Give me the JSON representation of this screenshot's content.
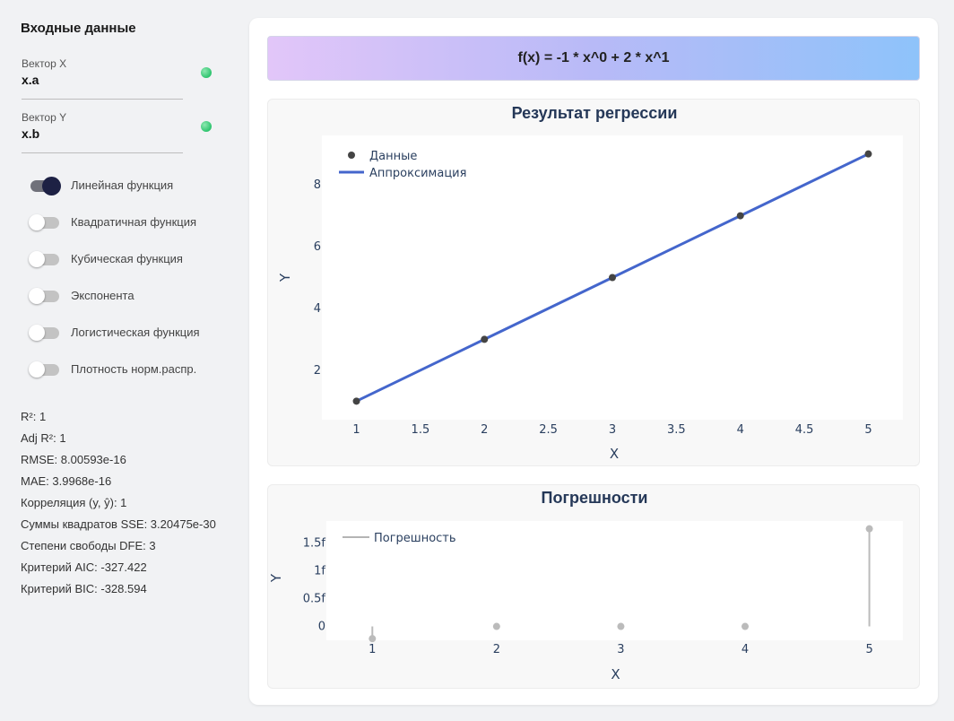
{
  "sidebar": {
    "title": "Входные данные",
    "fields": [
      {
        "label": "Вектор X",
        "value": "x.a"
      },
      {
        "label": "Вектор Y",
        "value": "x.b"
      }
    ],
    "toggles": [
      {
        "label": "Линейная функция",
        "on": true
      },
      {
        "label": "Квадратичная функция",
        "on": false
      },
      {
        "label": "Кубическая функция",
        "on": false
      },
      {
        "label": "Экспонента",
        "on": false
      },
      {
        "label": "Логистическая функция",
        "on": false
      },
      {
        "label": "Плотность норм.распр.",
        "on": false
      }
    ],
    "stats": [
      "R²: 1",
      "Adj R²: 1",
      "RMSE: 8.00593e-16",
      "MAE: 3.9968e-16",
      "Корреляция (y, ŷ): 1",
      "Суммы квадратов SSE: 3.20475e-30",
      "Степени свободы DFE: 3",
      "Критерий AIC: -327.422",
      "Критерий BIC: -328.594"
    ]
  },
  "main": {
    "formula": "f(x) = -1 * x^0 + 2 * x^1"
  },
  "colors": {
    "fit_line": "#4466cc",
    "data_marker": "#444444",
    "error_marker": "#bbbbbb",
    "status_ok": "#2ec46e",
    "toggle_on": "#1d2144"
  },
  "chart_data": [
    {
      "type": "line",
      "title": "Результат регрессии",
      "xlabel": "X",
      "ylabel": "Y",
      "x_ticks": [
        "1",
        "1.5",
        "2",
        "2.5",
        "3",
        "3.5",
        "4",
        "4.5",
        "5"
      ],
      "y_ticks": [
        "2",
        "4",
        "6",
        "8"
      ],
      "xlim": [
        0.73,
        5.27
      ],
      "ylim": [
        0.4,
        9.6
      ],
      "legend_position": "top-left",
      "series": [
        {
          "name": "Данные",
          "kind": "markers",
          "x": [
            1,
            2,
            3,
            4,
            5
          ],
          "y": [
            1,
            3,
            5,
            7,
            9
          ]
        },
        {
          "name": "Аппроксимация",
          "kind": "line",
          "x": [
            1,
            2,
            3,
            4,
            5
          ],
          "y": [
            1,
            3,
            5,
            7,
            9
          ]
        }
      ]
    },
    {
      "type": "scatter",
      "title": "Погрешности",
      "xlabel": "X",
      "ylabel": "Y",
      "x_ticks": [
        "1",
        "2",
        "3",
        "4",
        "5"
      ],
      "y_ticks": [
        "0",
        "0.5f",
        "1f",
        "1.5f"
      ],
      "y_tick_values": [
        0,
        0.5,
        1,
        1.5
      ],
      "xlim": [
        0.63,
        5.27
      ],
      "ylim": [
        -0.25,
        1.9
      ],
      "legend_position": "top-left",
      "series": [
        {
          "name": "Погрешность",
          "kind": "stem",
          "x": [
            1,
            2,
            3,
            4,
            5
          ],
          "y": [
            -0.22,
            0,
            0,
            0,
            1.76
          ]
        }
      ]
    }
  ]
}
